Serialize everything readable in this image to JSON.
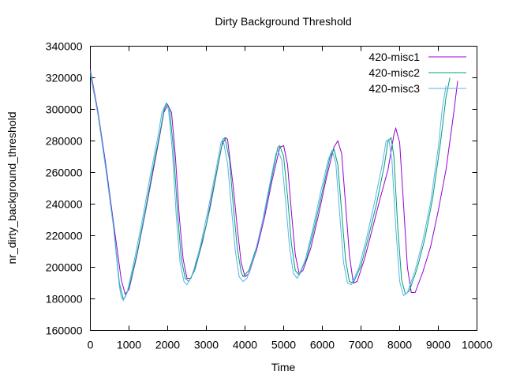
{
  "chart_data": {
    "type": "line",
    "title": "Dirty Background Threshold",
    "xlabel": "Time",
    "ylabel": "nr_dirty_background_threshold",
    "xlim": [
      0,
      10000
    ],
    "ylim": [
      160000,
      340000
    ],
    "xticks": [
      0,
      1000,
      2000,
      3000,
      4000,
      5000,
      6000,
      7000,
      8000,
      9000,
      10000
    ],
    "yticks": [
      160000,
      180000,
      200000,
      220000,
      240000,
      260000,
      280000,
      300000,
      320000,
      340000
    ],
    "grid": false,
    "legend_position": "top-right",
    "series": [
      {
        "name": "420-misc1",
        "color": "#9400d3",
        "points": [
          [
            0,
            325000
          ],
          [
            200,
            298000
          ],
          [
            400,
            265000
          ],
          [
            600,
            228000
          ],
          [
            800,
            192000
          ],
          [
            900,
            183000
          ],
          [
            1000,
            186000
          ],
          [
            1200,
            207000
          ],
          [
            1400,
            232000
          ],
          [
            1600,
            258000
          ],
          [
            1800,
            284000
          ],
          [
            1900,
            298000
          ],
          [
            2000,
            303000
          ],
          [
            2100,
            298000
          ],
          [
            2200,
            270000
          ],
          [
            2300,
            232000
          ],
          [
            2400,
            205000
          ],
          [
            2500,
            193000
          ],
          [
            2600,
            193000
          ],
          [
            2800,
            207000
          ],
          [
            3000,
            227000
          ],
          [
            3200,
            252000
          ],
          [
            3400,
            277000
          ],
          [
            3500,
            282000
          ],
          [
            3550,
            281000
          ],
          [
            3700,
            250000
          ],
          [
            3800,
            225000
          ],
          [
            3900,
            203000
          ],
          [
            4000,
            194000
          ],
          [
            4100,
            196000
          ],
          [
            4300,
            211000
          ],
          [
            4500,
            231000
          ],
          [
            4700,
            255000
          ],
          [
            4900,
            276000
          ],
          [
            5000,
            277000
          ],
          [
            5100,
            265000
          ],
          [
            5200,
            235000
          ],
          [
            5300,
            208000
          ],
          [
            5400,
            196000
          ],
          [
            5500,
            198000
          ],
          [
            5700,
            212000
          ],
          [
            5900,
            233000
          ],
          [
            6100,
            256000
          ],
          [
            6300,
            276000
          ],
          [
            6400,
            280000
          ],
          [
            6500,
            272000
          ],
          [
            6600,
            240000
          ],
          [
            6700,
            208000
          ],
          [
            6800,
            190000
          ],
          [
            6900,
            191000
          ],
          [
            7100,
            206000
          ],
          [
            7300,
            225000
          ],
          [
            7500,
            244000
          ],
          [
            7700,
            262000
          ],
          [
            7850,
            284000
          ],
          [
            7900,
            288000
          ],
          [
            8000,
            279000
          ],
          [
            8100,
            240000
          ],
          [
            8200,
            200000
          ],
          [
            8300,
            184000
          ],
          [
            8400,
            184000
          ],
          [
            8600,
            197000
          ],
          [
            8800,
            213000
          ],
          [
            9000,
            236000
          ],
          [
            9200,
            262000
          ],
          [
            9400,
            298000
          ],
          [
            9500,
            318000
          ]
        ]
      },
      {
        "name": "420-misc2",
        "color": "#009e73",
        "points": [
          [
            0,
            322000
          ],
          [
            200,
            297000
          ],
          [
            400,
            263000
          ],
          [
            600,
            226000
          ],
          [
            750,
            190000
          ],
          [
            850,
            180000
          ],
          [
            900,
            181000
          ],
          [
            1000,
            187000
          ],
          [
            1200,
            208000
          ],
          [
            1400,
            233000
          ],
          [
            1600,
            260000
          ],
          [
            1800,
            285000
          ],
          [
            1900,
            299000
          ],
          [
            1970,
            304000
          ],
          [
            2050,
            300000
          ],
          [
            2150,
            275000
          ],
          [
            2250,
            236000
          ],
          [
            2350,
            206000
          ],
          [
            2450,
            193000
          ],
          [
            2550,
            191000
          ],
          [
            2700,
            198000
          ],
          [
            2900,
            216000
          ],
          [
            3100,
            238000
          ],
          [
            3300,
            264000
          ],
          [
            3430,
            281000
          ],
          [
            3480,
            282000
          ],
          [
            3600,
            268000
          ],
          [
            3700,
            238000
          ],
          [
            3800,
            212000
          ],
          [
            3900,
            197000
          ],
          [
            3950,
            194000
          ],
          [
            4100,
            198000
          ],
          [
            4300,
            213000
          ],
          [
            4500,
            234000
          ],
          [
            4700,
            258000
          ],
          [
            4850,
            276000
          ],
          [
            4900,
            277000
          ],
          [
            5000,
            270000
          ],
          [
            5100,
            245000
          ],
          [
            5200,
            215000
          ],
          [
            5300,
            198000
          ],
          [
            5400,
            195000
          ],
          [
            5600,
            206000
          ],
          [
            5800,
            226000
          ],
          [
            6000,
            248000
          ],
          [
            6200,
            270000
          ],
          [
            6300,
            275000
          ],
          [
            6400,
            265000
          ],
          [
            6500,
            235000
          ],
          [
            6600,
            205000
          ],
          [
            6700,
            191000
          ],
          [
            6800,
            190000
          ],
          [
            7000,
            201000
          ],
          [
            7200,
            220000
          ],
          [
            7400,
            240000
          ],
          [
            7600,
            264000
          ],
          [
            7700,
            280000
          ],
          [
            7780,
            282000
          ],
          [
            7850,
            270000
          ],
          [
            7950,
            225000
          ],
          [
            8050,
            192000
          ],
          [
            8150,
            183000
          ],
          [
            8250,
            185000
          ],
          [
            8450,
            199000
          ],
          [
            8650,
            218000
          ],
          [
            8850,
            243000
          ],
          [
            9050,
            278000
          ],
          [
            9200,
            308000
          ],
          [
            9300,
            320000
          ]
        ]
      },
      {
        "name": "420-misc3",
        "color": "#56b4e9",
        "points": [
          [
            0,
            324000
          ],
          [
            200,
            296000
          ],
          [
            400,
            262000
          ],
          [
            600,
            225000
          ],
          [
            750,
            188000
          ],
          [
            800,
            181000
          ],
          [
            850,
            179000
          ],
          [
            950,
            184000
          ],
          [
            1150,
            206000
          ],
          [
            1350,
            231000
          ],
          [
            1550,
            258000
          ],
          [
            1750,
            283000
          ],
          [
            1850,
            298000
          ],
          [
            1940,
            303000
          ],
          [
            2020,
            300000
          ],
          [
            2120,
            274000
          ],
          [
            2220,
            233000
          ],
          [
            2320,
            203000
          ],
          [
            2420,
            191000
          ],
          [
            2500,
            189000
          ],
          [
            2650,
            196000
          ],
          [
            2850,
            214000
          ],
          [
            3050,
            237000
          ],
          [
            3250,
            262000
          ],
          [
            3380,
            279000
          ],
          [
            3430,
            281000
          ],
          [
            3550,
            266000
          ],
          [
            3650,
            237000
          ],
          [
            3750,
            210000
          ],
          [
            3850,
            194000
          ],
          [
            3950,
            191000
          ],
          [
            4050,
            193000
          ],
          [
            4250,
            208000
          ],
          [
            4450,
            229000
          ],
          [
            4650,
            254000
          ],
          [
            4800,
            272000
          ],
          [
            4850,
            274000
          ],
          [
            4950,
            268000
          ],
          [
            5050,
            242000
          ],
          [
            5150,
            213000
          ],
          [
            5250,
            196000
          ],
          [
            5350,
            193000
          ],
          [
            5550,
            204000
          ],
          [
            5750,
            224000
          ],
          [
            5950,
            247000
          ],
          [
            6150,
            268000
          ],
          [
            6250,
            274000
          ],
          [
            6350,
            266000
          ],
          [
            6450,
            233000
          ],
          [
            6550,
            203000
          ],
          [
            6650,
            190000
          ],
          [
            6750,
            189000
          ],
          [
            6950,
            200000
          ],
          [
            7150,
            219000
          ],
          [
            7350,
            241000
          ],
          [
            7550,
            265000
          ],
          [
            7650,
            280000
          ],
          [
            7720,
            281000
          ],
          [
            7800,
            268000
          ],
          [
            7900,
            225000
          ],
          [
            8000,
            191000
          ],
          [
            8100,
            182000
          ],
          [
            8200,
            184000
          ],
          [
            8400,
            198000
          ],
          [
            8600,
            217000
          ],
          [
            8800,
            241000
          ],
          [
            9000,
            276000
          ],
          [
            9100,
            300000
          ],
          [
            9200,
            315000
          ]
        ]
      }
    ]
  }
}
